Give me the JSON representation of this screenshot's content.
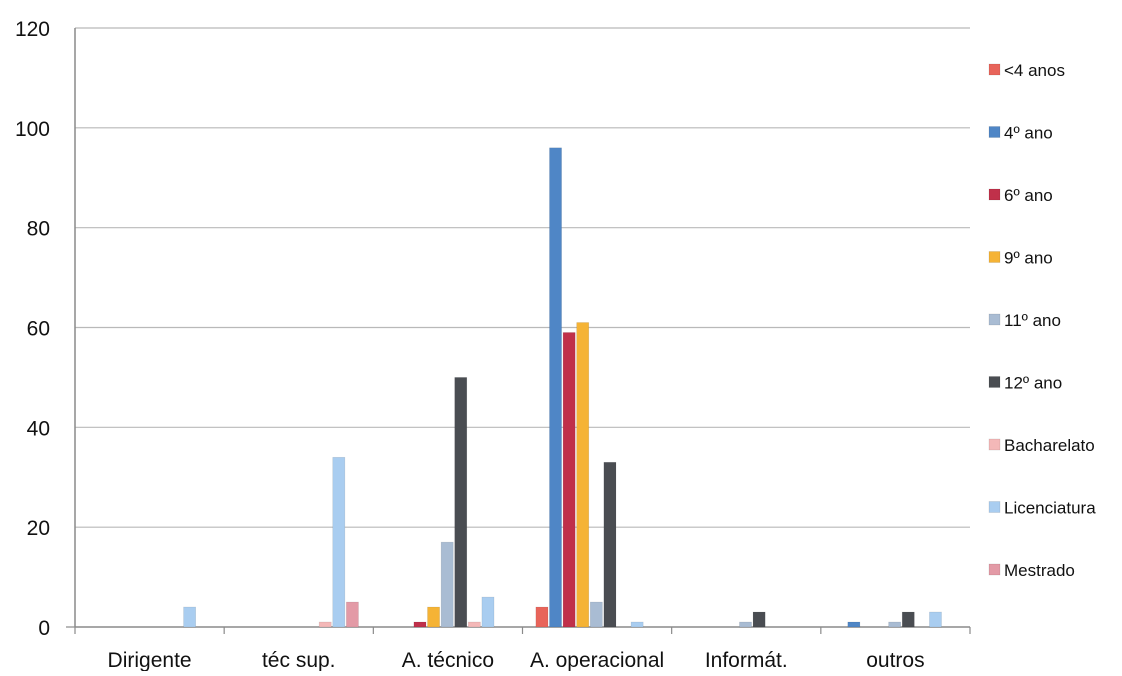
{
  "chart_data": {
    "type": "bar",
    "categories": [
      "Dirigente",
      "téc sup.",
      "A. técnico",
      "A. operacional",
      "Informát.",
      "outros"
    ],
    "ylim": [
      0,
      120
    ],
    "yticks": [
      0,
      20,
      40,
      60,
      80,
      100,
      120
    ],
    "grid": true,
    "legend_position": "right",
    "series": [
      {
        "name": "<4 anos",
        "color": "#e8645a",
        "values": [
          0,
          0,
          0,
          4,
          0,
          0
        ]
      },
      {
        "name": "4º ano",
        "color": "#4f86c6",
        "values": [
          0,
          0,
          0,
          96,
          0,
          1
        ]
      },
      {
        "name": "6º ano",
        "color": "#c0304a",
        "values": [
          0,
          0,
          1,
          59,
          0,
          0
        ]
      },
      {
        "name": "9º ano",
        "color": "#f5b335",
        "values": [
          0,
          0,
          4,
          61,
          0,
          0
        ]
      },
      {
        "name": "11º ano",
        "color": "#a9bcd3",
        "values": [
          0,
          0,
          17,
          5,
          1,
          1
        ]
      },
      {
        "name": "12º ano",
        "color": "#4a4d52",
        "values": [
          0,
          0,
          50,
          33,
          3,
          3
        ]
      },
      {
        "name": "Bacharelato",
        "color": "#f4b8b8",
        "values": [
          0,
          1,
          1,
          0,
          0,
          0
        ]
      },
      {
        "name": "Licenciatura",
        "color": "#a9cdf0",
        "values": [
          4,
          34,
          6,
          1,
          0,
          3
        ]
      },
      {
        "name": "Mestrado",
        "color": "#e39aa6",
        "values": [
          0,
          5,
          0,
          0,
          0,
          0
        ]
      }
    ]
  }
}
